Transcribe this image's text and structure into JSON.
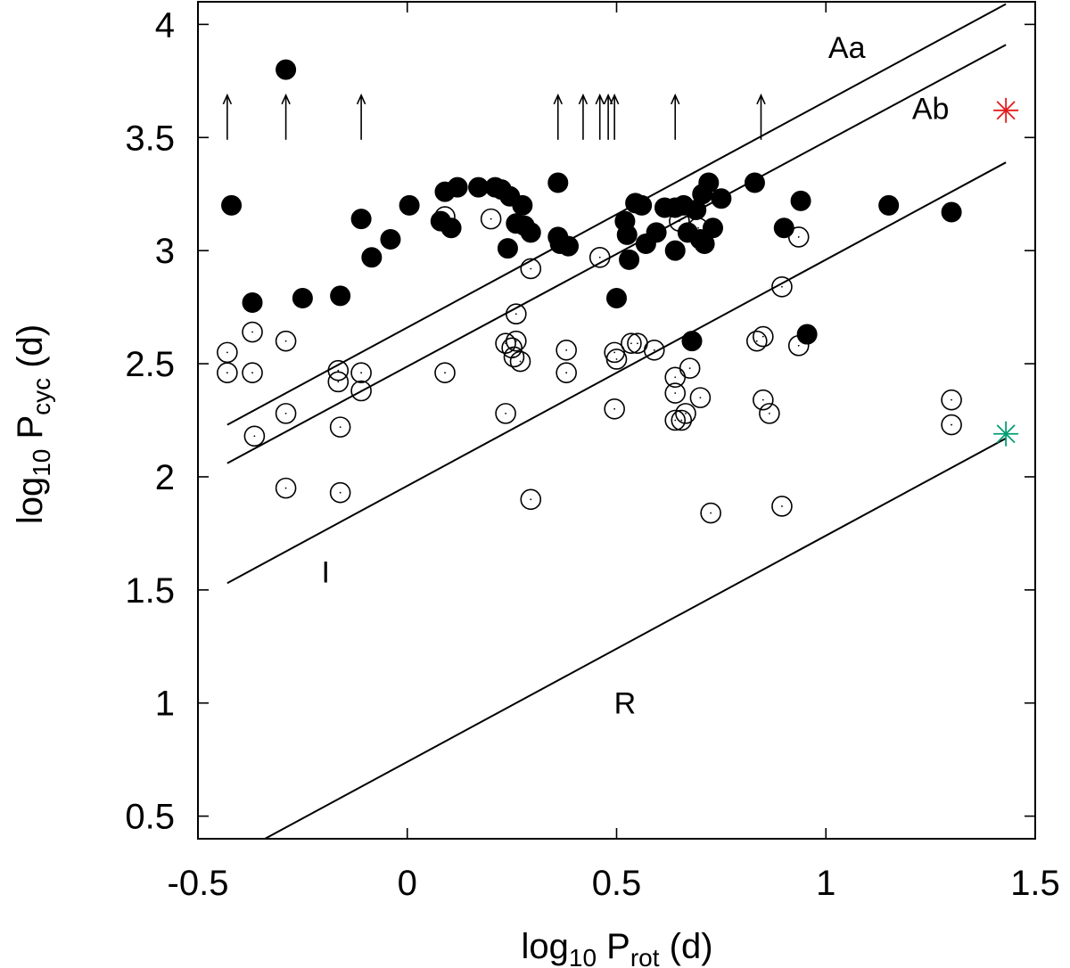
{
  "chart_data": {
    "type": "scatter",
    "xlabel": "log10 Prot (d)",
    "ylabel": "log10 Pcyc (d)",
    "xlabel_parts": {
      "main": "log",
      "base": "10",
      "mid": " P",
      "sub": "rot",
      "unit": " (d)"
    },
    "ylabel_parts": {
      "main": "log",
      "base": "10",
      "mid": " P",
      "sub": "cyc",
      "unit": " (d)"
    },
    "xlim": [
      -0.5,
      1.5
    ],
    "ylim": [
      0.4,
      4.1
    ],
    "xticks": [
      -0.5,
      0,
      0.5,
      1,
      1.5
    ],
    "xtick_labels": [
      "-0.5",
      "0",
      "0.5",
      "1",
      "1.5"
    ],
    "yticks": [
      0.5,
      1,
      1.5,
      2,
      2.5,
      3,
      3.5,
      4
    ],
    "ytick_labels": [
      "0.5",
      "1",
      "1.5",
      "2",
      "2.5",
      "3",
      "3.5",
      "4"
    ],
    "grid": false,
    "lines": [
      {
        "name": "Aa",
        "x": [
          -0.43,
          1.43
        ],
        "y": [
          2.23,
          4.09
        ]
      },
      {
        "name": "Ab",
        "x": [
          -0.43,
          1.43
        ],
        "y": [
          2.06,
          3.91
        ]
      },
      {
        "name": "I",
        "x": [
          -0.43,
          1.43
        ],
        "y": [
          1.53,
          3.39
        ]
      },
      {
        "name": "R",
        "x": [
          -0.36,
          1.43
        ],
        "y": [
          0.38,
          2.17
        ]
      }
    ],
    "line_labels": [
      {
        "text": "Aa",
        "x": 1.05,
        "y": 3.9
      },
      {
        "text": "Ab",
        "x": 1.25,
        "y": 3.63
      },
      {
        "text": "I",
        "x": -0.195,
        "y": 1.58
      },
      {
        "text": "R",
        "x": 0.52,
        "y": 1.0
      }
    ],
    "series": [
      {
        "name": "filled",
        "marker": "filled-circle",
        "points": [
          [
            -0.42,
            3.2
          ],
          [
            -0.29,
            3.8
          ],
          [
            -0.37,
            2.77
          ],
          [
            -0.25,
            2.79
          ],
          [
            -0.16,
            2.8
          ],
          [
            -0.11,
            3.14
          ],
          [
            -0.085,
            2.97
          ],
          [
            -0.04,
            3.05
          ],
          [
            0.005,
            3.2
          ],
          [
            0.08,
            3.13
          ],
          [
            0.09,
            3.26
          ],
          [
            0.105,
            3.1
          ],
          [
            0.12,
            3.28
          ],
          [
            0.17,
            3.28
          ],
          [
            0.21,
            3.28
          ],
          [
            0.225,
            3.27
          ],
          [
            0.24,
            3.01
          ],
          [
            0.245,
            3.24
          ],
          [
            0.26,
            3.12
          ],
          [
            0.275,
            3.2
          ],
          [
            0.28,
            3.11
          ],
          [
            0.295,
            3.08
          ],
          [
            0.36,
            3.3
          ],
          [
            0.36,
            3.06
          ],
          [
            0.365,
            3.03
          ],
          [
            0.385,
            3.02
          ],
          [
            0.5,
            2.79
          ],
          [
            0.52,
            3.13
          ],
          [
            0.525,
            3.07
          ],
          [
            0.53,
            2.96
          ],
          [
            0.545,
            3.21
          ],
          [
            0.56,
            3.2
          ],
          [
            0.57,
            3.03
          ],
          [
            0.595,
            3.08
          ],
          [
            0.615,
            3.19
          ],
          [
            0.64,
            3.19
          ],
          [
            0.64,
            3.0
          ],
          [
            0.66,
            3.2
          ],
          [
            0.67,
            3.08
          ],
          [
            0.68,
            2.6
          ],
          [
            0.69,
            3.18
          ],
          [
            0.7,
            3.05
          ],
          [
            0.705,
            3.25
          ],
          [
            0.71,
            3.03
          ],
          [
            0.72,
            3.3
          ],
          [
            0.73,
            3.1
          ],
          [
            0.75,
            3.23
          ],
          [
            0.83,
            3.3
          ],
          [
            0.9,
            3.1
          ],
          [
            0.94,
            3.22
          ],
          [
            0.955,
            2.63
          ],
          [
            1.15,
            3.2
          ],
          [
            1.3,
            3.17
          ]
        ]
      },
      {
        "name": "open",
        "marker": "open-circle",
        "points": [
          [
            -0.43,
            2.55
          ],
          [
            -0.43,
            2.46
          ],
          [
            -0.37,
            2.64
          ],
          [
            -0.37,
            2.46
          ],
          [
            -0.365,
            2.18
          ],
          [
            -0.29,
            2.6
          ],
          [
            -0.29,
            2.28
          ],
          [
            -0.29,
            1.95
          ],
          [
            -0.165,
            2.47
          ],
          [
            -0.165,
            2.42
          ],
          [
            -0.16,
            2.22
          ],
          [
            -0.16,
            1.93
          ],
          [
            -0.11,
            2.46
          ],
          [
            -0.11,
            2.38
          ],
          [
            0.09,
            3.15
          ],
          [
            0.09,
            2.46
          ],
          [
            0.2,
            3.14
          ],
          [
            0.235,
            2.59
          ],
          [
            0.235,
            2.28
          ],
          [
            0.25,
            2.57
          ],
          [
            0.255,
            2.53
          ],
          [
            0.26,
            2.72
          ],
          [
            0.26,
            2.6
          ],
          [
            0.27,
            2.51
          ],
          [
            0.295,
            2.92
          ],
          [
            0.295,
            1.9
          ],
          [
            0.38,
            2.56
          ],
          [
            0.38,
            2.46
          ],
          [
            0.46,
            2.97
          ],
          [
            0.495,
            2.55
          ],
          [
            0.5,
            2.52
          ],
          [
            0.495,
            2.3
          ],
          [
            0.535,
            2.59
          ],
          [
            0.55,
            2.59
          ],
          [
            0.59,
            2.56
          ],
          [
            0.64,
            2.44
          ],
          [
            0.64,
            2.37
          ],
          [
            0.64,
            2.25
          ],
          [
            0.65,
            3.13
          ],
          [
            0.655,
            2.25
          ],
          [
            0.665,
            2.28
          ],
          [
            0.675,
            2.48
          ],
          [
            0.695,
            3.1
          ],
          [
            0.7,
            2.35
          ],
          [
            0.725,
            1.84
          ],
          [
            0.835,
            2.6
          ],
          [
            0.85,
            2.62
          ],
          [
            0.85,
            2.34
          ],
          [
            0.865,
            2.28
          ],
          [
            0.895,
            2.84
          ],
          [
            0.895,
            1.87
          ],
          [
            0.935,
            3.06
          ],
          [
            0.935,
            2.58
          ],
          [
            1.3,
            2.34
          ],
          [
            1.3,
            2.23
          ]
        ]
      },
      {
        "name": "lower limits",
        "marker": "arrow-up",
        "points": [
          [
            -0.43,
            3.49
          ],
          [
            -0.29,
            3.49
          ],
          [
            -0.11,
            3.49
          ],
          [
            0.36,
            3.49
          ],
          [
            0.42,
            3.49
          ],
          [
            0.46,
            3.49
          ],
          [
            0.48,
            3.49
          ],
          [
            0.495,
            3.49
          ],
          [
            0.64,
            3.49
          ],
          [
            0.845,
            3.49
          ]
        ]
      },
      {
        "name": "red star",
        "marker": "star",
        "color": "#e41a1c",
        "points": [
          [
            1.43,
            3.62
          ]
        ]
      },
      {
        "name": "green star",
        "marker": "star",
        "color": "#009e73",
        "points": [
          [
            1.43,
            2.19
          ]
        ]
      }
    ]
  }
}
